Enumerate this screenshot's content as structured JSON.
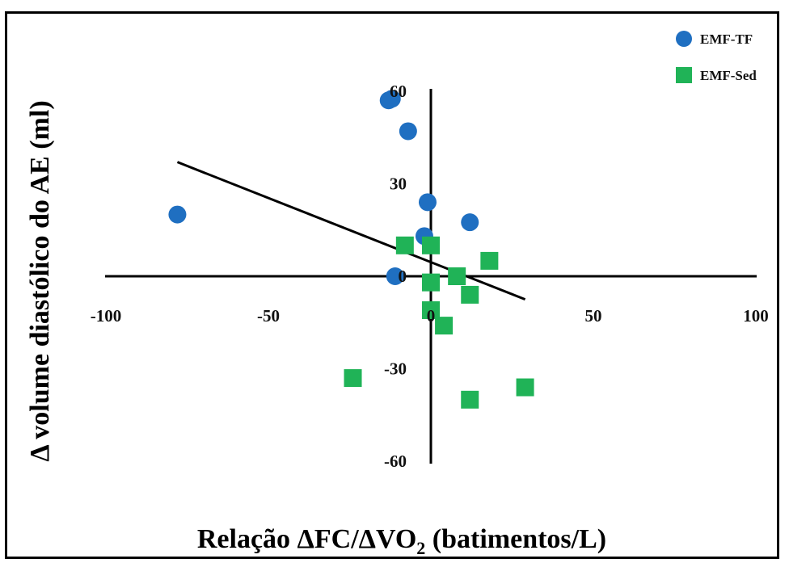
{
  "chart_data": {
    "type": "scatter",
    "xlabel": {
      "pre": "Relação ΔFC/ΔVO",
      "sub": "2",
      "post": " (batimentos/L)"
    },
    "ylabel": "Δ volume diastólico do AE (ml)",
    "xlim": [
      -100,
      100
    ],
    "ylim": [
      -60,
      60
    ],
    "x_ticks": [
      "-100",
      "-50",
      "0",
      "50",
      "100"
    ],
    "y_ticks": [
      "60",
      "30",
      "0",
      "-30",
      "-60"
    ],
    "legend": {
      "position": "top-right"
    },
    "series": [
      {
        "name": "EMF-TF",
        "marker": "circle",
        "color": "#1f6fc1",
        "points": [
          {
            "x": -78,
            "y": 20
          },
          {
            "x": -13,
            "y": 57
          },
          {
            "x": -12,
            "y": 57.5
          },
          {
            "x": -7,
            "y": 47
          },
          {
            "x": -1,
            "y": 24
          },
          {
            "x": -2,
            "y": 13
          },
          {
            "x": 12,
            "y": 17.5
          },
          {
            "x": -11,
            "y": 0
          }
        ]
      },
      {
        "name": "EMF-Sed",
        "marker": "square",
        "color": "#20b357",
        "points": [
          {
            "x": -8,
            "y": 10
          },
          {
            "x": 0,
            "y": 10
          },
          {
            "x": 18,
            "y": 5
          },
          {
            "x": 8,
            "y": 0
          },
          {
            "x": 0,
            "y": -2
          },
          {
            "x": 12,
            "y": -6
          },
          {
            "x": 0,
            "y": -11
          },
          {
            "x": 4,
            "y": -16
          },
          {
            "x": -24,
            "y": -33
          },
          {
            "x": 12,
            "y": -40
          },
          {
            "x": 29,
            "y": -36
          }
        ]
      }
    ],
    "trendline": {
      "x": [
        -78,
        29
      ],
      "y": [
        37,
        -7.5
      ]
    }
  }
}
